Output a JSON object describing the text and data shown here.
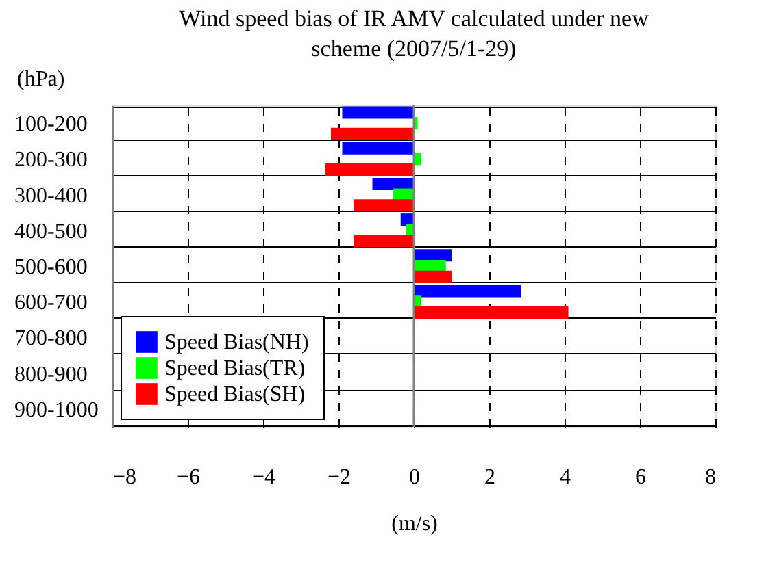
{
  "chart_data": {
    "type": "bar",
    "orientation": "horizontal",
    "title": "Wind speed bias of IR AMV calculated under new scheme (2007/5/1-29)",
    "xlabel": "(m/s)",
    "ylabel": "(hPa)",
    "categories": [
      "100-200",
      "200-300",
      "300-400",
      "400-500",
      "500-600",
      "600-700",
      "700-800",
      "800-900",
      "900-1000"
    ],
    "series": [
      {
        "name": "Speed Bias(NH)",
        "color": "#0000ff",
        "values": [
          -1.9,
          -1.9,
          -1.1,
          -0.35,
          1.0,
          2.85,
          null,
          null,
          null
        ]
      },
      {
        "name": "Speed Bias(TR)",
        "color": "#00ff00",
        "values": [
          0.1,
          0.2,
          -0.55,
          -0.2,
          0.85,
          0.2,
          null,
          null,
          null
        ]
      },
      {
        "name": "Speed Bias(SH)",
        "color": "#ff0000",
        "values": [
          -2.2,
          -2.35,
          -1.6,
          -1.6,
          1.0,
          4.1,
          null,
          null,
          null
        ]
      }
    ],
    "xlim": [
      -8,
      8
    ],
    "xticks": [
      -8,
      -6,
      -4,
      -2,
      0,
      2,
      4,
      6,
      8
    ],
    "grid": true,
    "legend": "bottom left"
  }
}
